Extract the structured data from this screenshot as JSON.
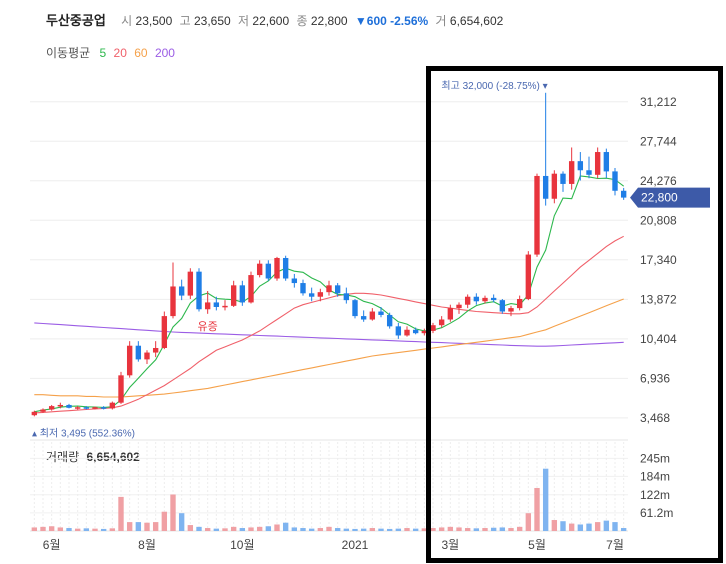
{
  "header": {
    "stock_name": "두산중공업",
    "open_label": "시",
    "open": "23,500",
    "high_label": "고",
    "high": "23,650",
    "low_label": "저",
    "low": "22,600",
    "close_label": "종",
    "close": "22,800",
    "change": "▼600 -2.56%",
    "volume_label": "거",
    "volume": "6,654,602"
  },
  "ma_legend": {
    "title": "이동평균",
    "periods": [
      {
        "label": "5",
        "color": "#2db84d"
      },
      {
        "label": "20",
        "color": "#f0606a"
      },
      {
        "label": "60",
        "color": "#f5a14a"
      },
      {
        "label": "200",
        "color": "#9b5de5"
      }
    ]
  },
  "chart_data": {
    "type": "candlestick",
    "y_ticks": [
      3468,
      6936,
      10404,
      13872,
      17340,
      20808,
      24276,
      27744,
      31212
    ],
    "y_tick_labels": [
      "3,468",
      "6,936",
      "10,404",
      "13,872",
      "17,340",
      "20,808",
      "24,276",
      "27,744",
      "31,212"
    ],
    "ylim": [
      1700,
      34000
    ],
    "x_tick_labels": [
      {
        "label": "6월",
        "idx": 2
      },
      {
        "label": "8월",
        "idx": 13
      },
      {
        "label": "10월",
        "idx": 24
      },
      {
        "label": "2021",
        "idx": 37
      },
      {
        "label": "3월",
        "idx": 48
      },
      {
        "label": "5월",
        "idx": 58
      },
      {
        "label": "7월",
        "idx": 67
      }
    ],
    "current_price_label": "22,800",
    "current_price": 22800,
    "max_annotation": "최고 32,000 (-28.75%)",
    "min_annotation": "최저 3,495 (552.36%)",
    "event_label": "유증",
    "candles": [
      [
        3700,
        4100,
        3600,
        4000
      ],
      [
        4000,
        4300,
        3900,
        4200
      ],
      [
        4200,
        4600,
        4100,
        4500
      ],
      [
        4500,
        4800,
        4300,
        4600
      ],
      [
        4600,
        4700,
        4300,
        4350
      ],
      [
        4350,
        4500,
        4200,
        4400
      ],
      [
        4400,
        4500,
        4200,
        4300
      ],
      [
        4300,
        4450,
        4200,
        4400
      ],
      [
        4400,
        4500,
        4200,
        4300
      ],
      [
        4300,
        4900,
        4200,
        4800
      ],
      [
        4800,
        7500,
        4700,
        7200
      ],
      [
        7200,
        10200,
        7000,
        9800
      ],
      [
        9800,
        10200,
        8400,
        8600
      ],
      [
        8600,
        9400,
        8200,
        9200
      ],
      [
        9200,
        10200,
        8800,
        9600
      ],
      [
        9600,
        12800,
        9500,
        12400
      ],
      [
        12400,
        17100,
        12200,
        15000
      ],
      [
        15000,
        15600,
        13800,
        14200
      ],
      [
        14200,
        16600,
        13900,
        16300
      ],
      [
        16300,
        16600,
        12800,
        13000
      ],
      [
        13000,
        14600,
        12600,
        13600
      ],
      [
        13600,
        14100,
        12900,
        13200
      ],
      [
        13200,
        13800,
        12900,
        13300
      ],
      [
        13300,
        15500,
        13200,
        15100
      ],
      [
        15100,
        15500,
        13300,
        13600
      ],
      [
        13600,
        16300,
        13500,
        16000
      ],
      [
        16000,
        17300,
        15800,
        17000
      ],
      [
        17000,
        17300,
        15500,
        15700
      ],
      [
        15700,
        17600,
        15500,
        17500
      ],
      [
        17500,
        17700,
        15500,
        15700
      ],
      [
        15700,
        16100,
        14900,
        15300
      ],
      [
        15300,
        15600,
        14200,
        14400
      ],
      [
        14400,
        14900,
        13700,
        14100
      ],
      [
        14100,
        14800,
        13700,
        14500
      ],
      [
        14500,
        15500,
        14200,
        15100
      ],
      [
        15100,
        15300,
        14100,
        14400
      ],
      [
        14400,
        14900,
        13500,
        13800
      ],
      [
        13800,
        13900,
        12200,
        12400
      ],
      [
        12400,
        12900,
        11900,
        12100
      ],
      [
        12100,
        13100,
        12000,
        12800
      ],
      [
        12800,
        13200,
        12300,
        12500
      ],
      [
        12500,
        12700,
        11300,
        11500
      ],
      [
        11500,
        11800,
        10400,
        10700
      ],
      [
        10700,
        11500,
        10600,
        11200
      ],
      [
        11200,
        11400,
        10800,
        10900
      ],
      [
        10900,
        11300,
        10700,
        11100
      ],
      [
        11100,
        11800,
        10900,
        11600
      ],
      [
        11600,
        12400,
        11400,
        12100
      ],
      [
        12100,
        13400,
        11900,
        13100
      ],
      [
        13100,
        13600,
        12600,
        13400
      ],
      [
        13400,
        14300,
        13100,
        14100
      ],
      [
        14100,
        14400,
        13400,
        13700
      ],
      [
        13700,
        14200,
        13500,
        14000
      ],
      [
        14000,
        14300,
        13600,
        13800
      ],
      [
        13800,
        13900,
        12600,
        12800
      ],
      [
        12800,
        13300,
        12400,
        13100
      ],
      [
        13100,
        14200,
        12900,
        13900
      ],
      [
        13900,
        18100,
        13800,
        17800
      ],
      [
        17800,
        24900,
        17600,
        24700
      ],
      [
        24700,
        32000,
        22100,
        22700
      ],
      [
        22700,
        25200,
        22300,
        24900
      ],
      [
        24900,
        25100,
        23300,
        24000
      ],
      [
        24000,
        27200,
        23500,
        26000
      ],
      [
        26000,
        26800,
        24300,
        25200
      ],
      [
        25200,
        26400,
        24500,
        24800
      ],
      [
        24800,
        27200,
        24500,
        26800
      ],
      [
        26800,
        27100,
        24500,
        25100
      ],
      [
        25100,
        25400,
        23000,
        23400
      ],
      [
        23400,
        23650,
        22600,
        22800
      ]
    ],
    "ma5": [
      4000,
      4150,
      4250,
      4400,
      4480,
      4500,
      4440,
      4420,
      4390,
      4440,
      5040,
      6140,
      6940,
      7770,
      8560,
      9920,
      11440,
      12200,
      13540,
      14180,
      14420,
      13940,
      13880,
      13840,
      13620,
      14120,
      15020,
      15480,
      16260,
      16600,
      16340,
      16240,
      15740,
      15400,
      14700,
      14300,
      14260,
      14100,
      13700,
      13500,
      13100,
      12500,
      11900,
      11700,
      11280,
      11100,
      11180,
      11380,
      11780,
      12220,
      12860,
      13320,
      13540,
      13660,
      13280,
      13500,
      13380,
      14260,
      16700,
      18200,
      21200,
      22760,
      22700,
      24700,
      24620,
      24480,
      24500,
      24380,
      23800
    ],
    "ma20": [
      3900,
      3950,
      4000,
      4050,
      4100,
      4150,
      4200,
      4250,
      4300,
      4350,
      4500,
      4800,
      5100,
      5500,
      5900,
      6300,
      6800,
      7300,
      7800,
      8400,
      8900,
      9400,
      9700,
      10000,
      10300,
      10700,
      11100,
      11600,
      12100,
      12600,
      13100,
      13400,
      13600,
      13800,
      14000,
      14200,
      14300,
      14400,
      14400,
      14350,
      14250,
      14100,
      13950,
      13800,
      13650,
      13500,
      13350,
      13200,
      13100,
      13000,
      12900,
      12800,
      12750,
      12700,
      12650,
      12600,
      12600,
      12700,
      13200,
      13900,
      14600,
      15300,
      16000,
      16700,
      17300,
      17900,
      18500,
      19000,
      19400
    ],
    "ma60": [
      5500,
      5500,
      5450,
      5400,
      5400,
      5400,
      5350,
      5350,
      5300,
      5300,
      5300,
      5350,
      5400,
      5450,
      5500,
      5550,
      5650,
      5750,
      5850,
      5950,
      6050,
      6200,
      6350,
      6500,
      6650,
      6800,
      6950,
      7100,
      7250,
      7400,
      7550,
      7700,
      7850,
      8000,
      8150,
      8300,
      8450,
      8600,
      8750,
      8900,
      9000,
      9100,
      9200,
      9300,
      9400,
      9500,
      9600,
      9700,
      9800,
      9900,
      10000,
      10100,
      10200,
      10300,
      10400,
      10500,
      10600,
      10800,
      11000,
      11200,
      11500,
      11800,
      12100,
      12400,
      12700,
      13000,
      13300,
      13600,
      13900
    ],
    "ma200": [
      11800,
      11750,
      11700,
      11650,
      11600,
      11550,
      11500,
      11450,
      11400,
      11350,
      11300,
      11250,
      11200,
      11150,
      11100,
      11050,
      11000,
      10970,
      10940,
      10910,
      10880,
      10850,
      10820,
      10790,
      10760,
      10730,
      10700,
      10670,
      10640,
      10610,
      10580,
      10550,
      10520,
      10490,
      10460,
      10430,
      10400,
      10370,
      10340,
      10310,
      10280,
      10250,
      10220,
      10190,
      10160,
      10130,
      10100,
      10070,
      10040,
      10010,
      9980,
      9950,
      9920,
      9890,
      9860,
      9830,
      9800,
      9780,
      9760,
      9760,
      9780,
      9820,
      9860,
      9900,
      9940,
      9980,
      10020,
      10060,
      10100
    ],
    "volume_title": "거래량",
    "volume_current": "6,654,602",
    "volume_ticks": [
      61.2,
      122,
      184,
      245
    ],
    "volume_tick_labels": [
      "61.2m",
      "122m",
      "184m",
      "245m"
    ],
    "volume_ylim": [
      0,
      300
    ],
    "volumes": [
      12,
      14,
      16,
      12,
      10,
      8,
      9,
      8,
      7,
      9,
      115,
      30,
      30,
      28,
      30,
      65,
      123,
      60,
      20,
      14,
      10,
      8,
      9,
      14,
      10,
      12,
      14,
      16,
      22,
      28,
      12,
      10,
      8,
      10,
      14,
      10,
      8,
      7,
      8,
      10,
      8,
      7,
      8,
      10,
      8,
      9,
      10,
      12,
      14,
      12,
      10,
      9,
      10,
      11,
      12,
      10,
      14,
      60,
      145,
      210,
      37,
      33,
      25,
      22,
      25,
      30,
      35,
      30,
      10
    ]
  }
}
